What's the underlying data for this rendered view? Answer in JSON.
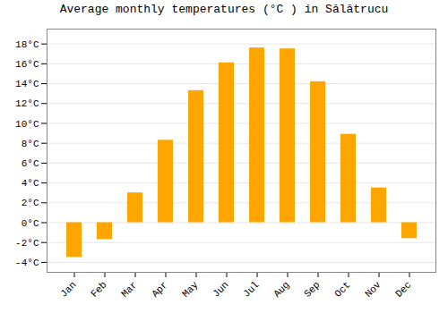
{
  "chart_data": {
    "type": "bar",
    "title": "Average monthly temperatures (°C ) in Sălătrucu",
    "categories": [
      "Jan",
      "Feb",
      "Mar",
      "Apr",
      "May",
      "Jun",
      "Jul",
      "Aug",
      "Sep",
      "Oct",
      "Nov",
      "Dec"
    ],
    "values": [
      -3.5,
      -1.7,
      3.0,
      8.3,
      13.3,
      16.1,
      17.6,
      17.5,
      14.2,
      8.9,
      3.5,
      -1.6
    ],
    "color": "#FFA500",
    "ylim": [
      -5,
      19.5
    ],
    "yticks": [
      {
        "value": -4,
        "label": "-4°C"
      },
      {
        "value": -2,
        "label": "-2°C"
      },
      {
        "value": 0,
        "label": "0°C"
      },
      {
        "value": 2,
        "label": "2°C"
      },
      {
        "value": 4,
        "label": "4°C"
      },
      {
        "value": 6,
        "label": "6°C"
      },
      {
        "value": 8,
        "label": "8°C"
      },
      {
        "value": 10,
        "label": "10°C"
      },
      {
        "value": 12,
        "label": "12°C"
      },
      {
        "value": 14,
        "label": "14°C"
      },
      {
        "value": 16,
        "label": "16°C"
      },
      {
        "value": 18,
        "label": "18°C"
      }
    ],
    "grid": true
  }
}
